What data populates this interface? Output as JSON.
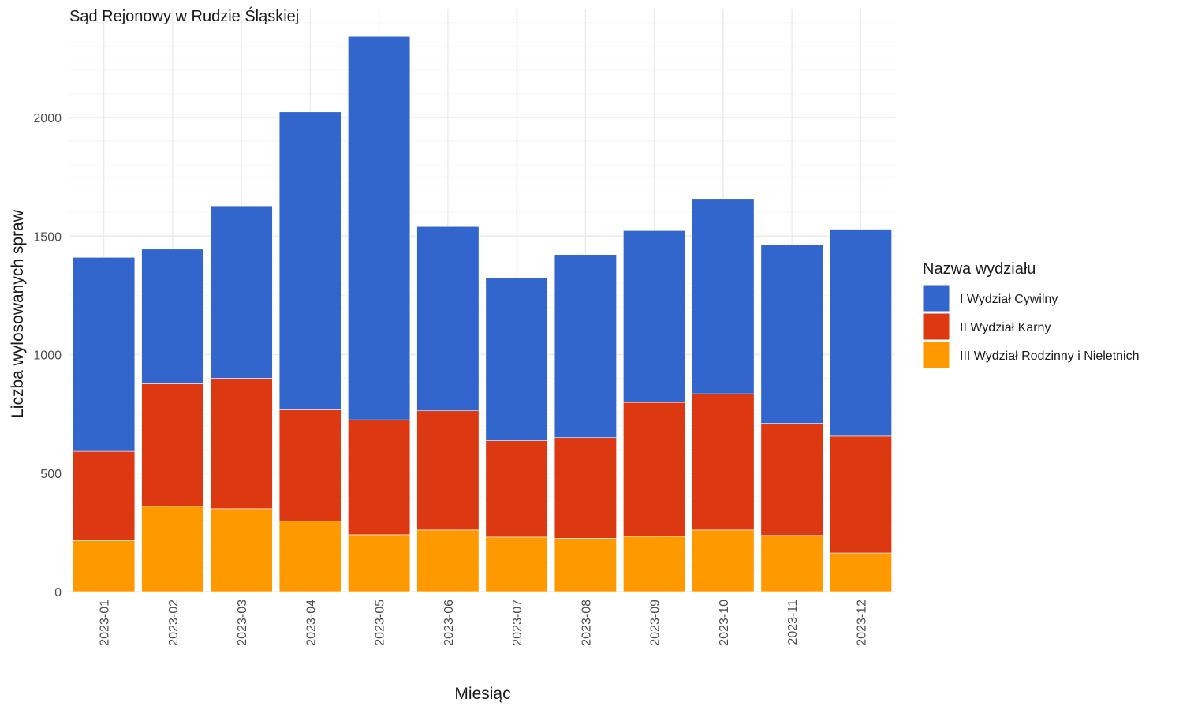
{
  "chart_data": {
    "type": "bar",
    "stacked": true,
    "title": "Sąd Rejonowy w Rudzie Śląskiej",
    "xlabel": "Miesiąc",
    "ylabel": "Liczba wylosowanych spraw",
    "ylim": [
      0,
      2400
    ],
    "yticks": [
      0,
      500,
      1000,
      1500,
      2000
    ],
    "grid": true,
    "legend": {
      "title": "Nazwa wydziału",
      "position": "right"
    },
    "categories": [
      "2023-01",
      "2023-02",
      "2023-03",
      "2023-04",
      "2023-05",
      "2023-06",
      "2023-07",
      "2023-08",
      "2023-09",
      "2023-10",
      "2023-11",
      "2023-12"
    ],
    "series": [
      {
        "name": "III Wydział Rodzinny i Nieletnich",
        "color": "#ff9900",
        "values": [
          215,
          360,
          350,
          297,
          240,
          260,
          230,
          225,
          233,
          260,
          237,
          163
        ]
      },
      {
        "name": "II Wydział Karny",
        "color": "#dc3912",
        "values": [
          377,
          517,
          550,
          470,
          485,
          503,
          407,
          425,
          565,
          575,
          473,
          493
        ]
      },
      {
        "name": "I Wydział Cywilny",
        "color": "#3366cc",
        "values": [
          818,
          568,
          727,
          1257,
          1617,
          777,
          688,
          772,
          725,
          823,
          753,
          873
        ]
      }
    ]
  }
}
